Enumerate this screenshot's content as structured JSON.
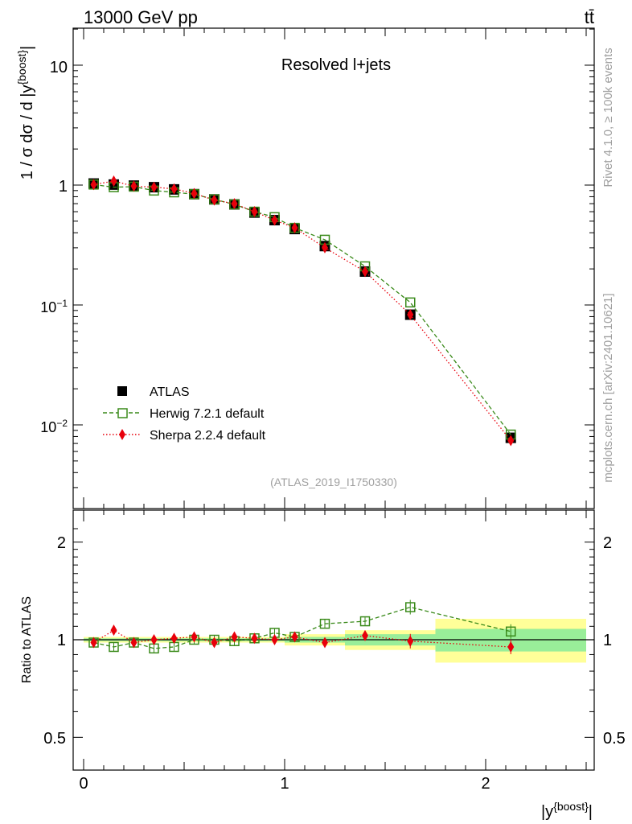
{
  "header": {
    "energy_label": "13000 GeV pp",
    "process_label": "tt̄",
    "panel_title": "Resolved l+jets",
    "watermark": "(ATLAS_2019_I1750330)",
    "side_rivet": "Rivet 4.1.0, ≥ 100k events",
    "side_mcplots": "mcplots.cern.ch [arXiv:2401.10621]"
  },
  "axes": {
    "main_ylabel": "1 / σ dσ / d |y^{boost}|",
    "ratio_ylabel": "Ratio to ATLAS",
    "xlabel": "|y^{boost}|",
    "main_yticks": [
      "10^{-2}",
      "10^{-1}",
      "1",
      "10"
    ],
    "ratio_yticks": [
      "0.5",
      "1",
      "2"
    ],
    "xticks": [
      "0",
      "1",
      "2"
    ]
  },
  "legend": [
    {
      "label": "ATLAS",
      "color": "#000000"
    },
    {
      "label": "Herwig 7.2.1 default",
      "color": "#3a8a1a"
    },
    {
      "label": "Sherpa 2.2.4 default",
      "color": "#e8000b"
    }
  ],
  "chart_data": {
    "type": "scatter",
    "xscale": "linear",
    "yscale": "log",
    "xlim": [
      -0.05,
      2.55
    ],
    "ylim": [
      0.0022,
      20
    ],
    "ratio_ylim": [
      0.4,
      2.4
    ],
    "bins": [
      [
        0.0,
        0.1
      ],
      [
        0.1,
        0.2
      ],
      [
        0.2,
        0.3
      ],
      [
        0.3,
        0.4
      ],
      [
        0.4,
        0.5
      ],
      [
        0.5,
        0.6
      ],
      [
        0.6,
        0.7
      ],
      [
        0.7,
        0.8
      ],
      [
        0.8,
        0.9
      ],
      [
        0.9,
        1.0
      ],
      [
        1.0,
        1.1
      ],
      [
        1.1,
        1.3
      ],
      [
        1.3,
        1.5
      ],
      [
        1.5,
        1.75
      ],
      [
        1.75,
        2.5
      ]
    ],
    "x": [
      0.05,
      0.15,
      0.25,
      0.35,
      0.45,
      0.55,
      0.65,
      0.75,
      0.85,
      0.95,
      1.05,
      1.2,
      1.4,
      1.625,
      2.125
    ],
    "series": [
      {
        "name": "ATLAS",
        "values": [
          1.03,
          1.01,
          0.99,
          0.96,
          0.92,
          0.84,
          0.76,
          0.69,
          0.59,
          0.51,
          0.43,
          0.31,
          0.19,
          0.083,
          0.0078
        ],
        "ratio": [
          1,
          1,
          1,
          1,
          1,
          1,
          1,
          1,
          1,
          1,
          1,
          1,
          1,
          1,
          1
        ]
      },
      {
        "name": "Herwig 7.2.1 default",
        "values": [
          1.01,
          0.96,
          0.97,
          0.9,
          0.87,
          0.84,
          0.76,
          0.69,
          0.6,
          0.54,
          0.44,
          0.35,
          0.21,
          0.105,
          0.0083
        ],
        "ratio": [
          0.98,
          0.95,
          0.98,
          0.94,
          0.95,
          1.0,
          1.0,
          0.99,
          1.01,
          1.05,
          1.02,
          1.12,
          1.14,
          1.26,
          1.06
        ]
      },
      {
        "name": "Sherpa 2.2.4 default",
        "values": [
          1.01,
          1.08,
          0.98,
          0.96,
          0.93,
          0.85,
          0.75,
          0.7,
          0.6,
          0.51,
          0.44,
          0.3,
          0.19,
          0.083,
          0.0074
        ],
        "ratio": [
          0.98,
          1.07,
          0.98,
          1.0,
          1.01,
          1.02,
          0.98,
          1.02,
          1.01,
          1.0,
          1.02,
          0.98,
          1.03,
          0.99,
          0.95
        ]
      }
    ],
    "ratio_band_stat": [
      [
        0.99,
        1.01
      ],
      [
        0.99,
        1.01
      ],
      [
        0.99,
        1.01
      ],
      [
        0.99,
        1.01
      ],
      [
        0.99,
        1.01
      ],
      [
        0.99,
        1.01
      ],
      [
        0.99,
        1.01
      ],
      [
        0.99,
        1.01
      ],
      [
        0.99,
        1.01
      ],
      [
        0.99,
        1.01
      ],
      [
        0.98,
        1.02
      ],
      [
        0.98,
        1.02
      ],
      [
        0.96,
        1.04
      ],
      [
        0.96,
        1.04
      ],
      [
        0.92,
        1.08
      ]
    ],
    "ratio_band_total": [
      [
        0.98,
        1.02
      ],
      [
        0.98,
        1.02
      ],
      [
        0.98,
        1.02
      ],
      [
        0.98,
        1.02
      ],
      [
        0.98,
        1.02
      ],
      [
        0.98,
        1.02
      ],
      [
        0.98,
        1.02
      ],
      [
        0.98,
        1.02
      ],
      [
        0.98,
        1.02
      ],
      [
        0.98,
        1.02
      ],
      [
        0.96,
        1.04
      ],
      [
        0.96,
        1.04
      ],
      [
        0.93,
        1.07
      ],
      [
        0.93,
        1.07
      ],
      [
        0.85,
        1.16
      ]
    ]
  }
}
